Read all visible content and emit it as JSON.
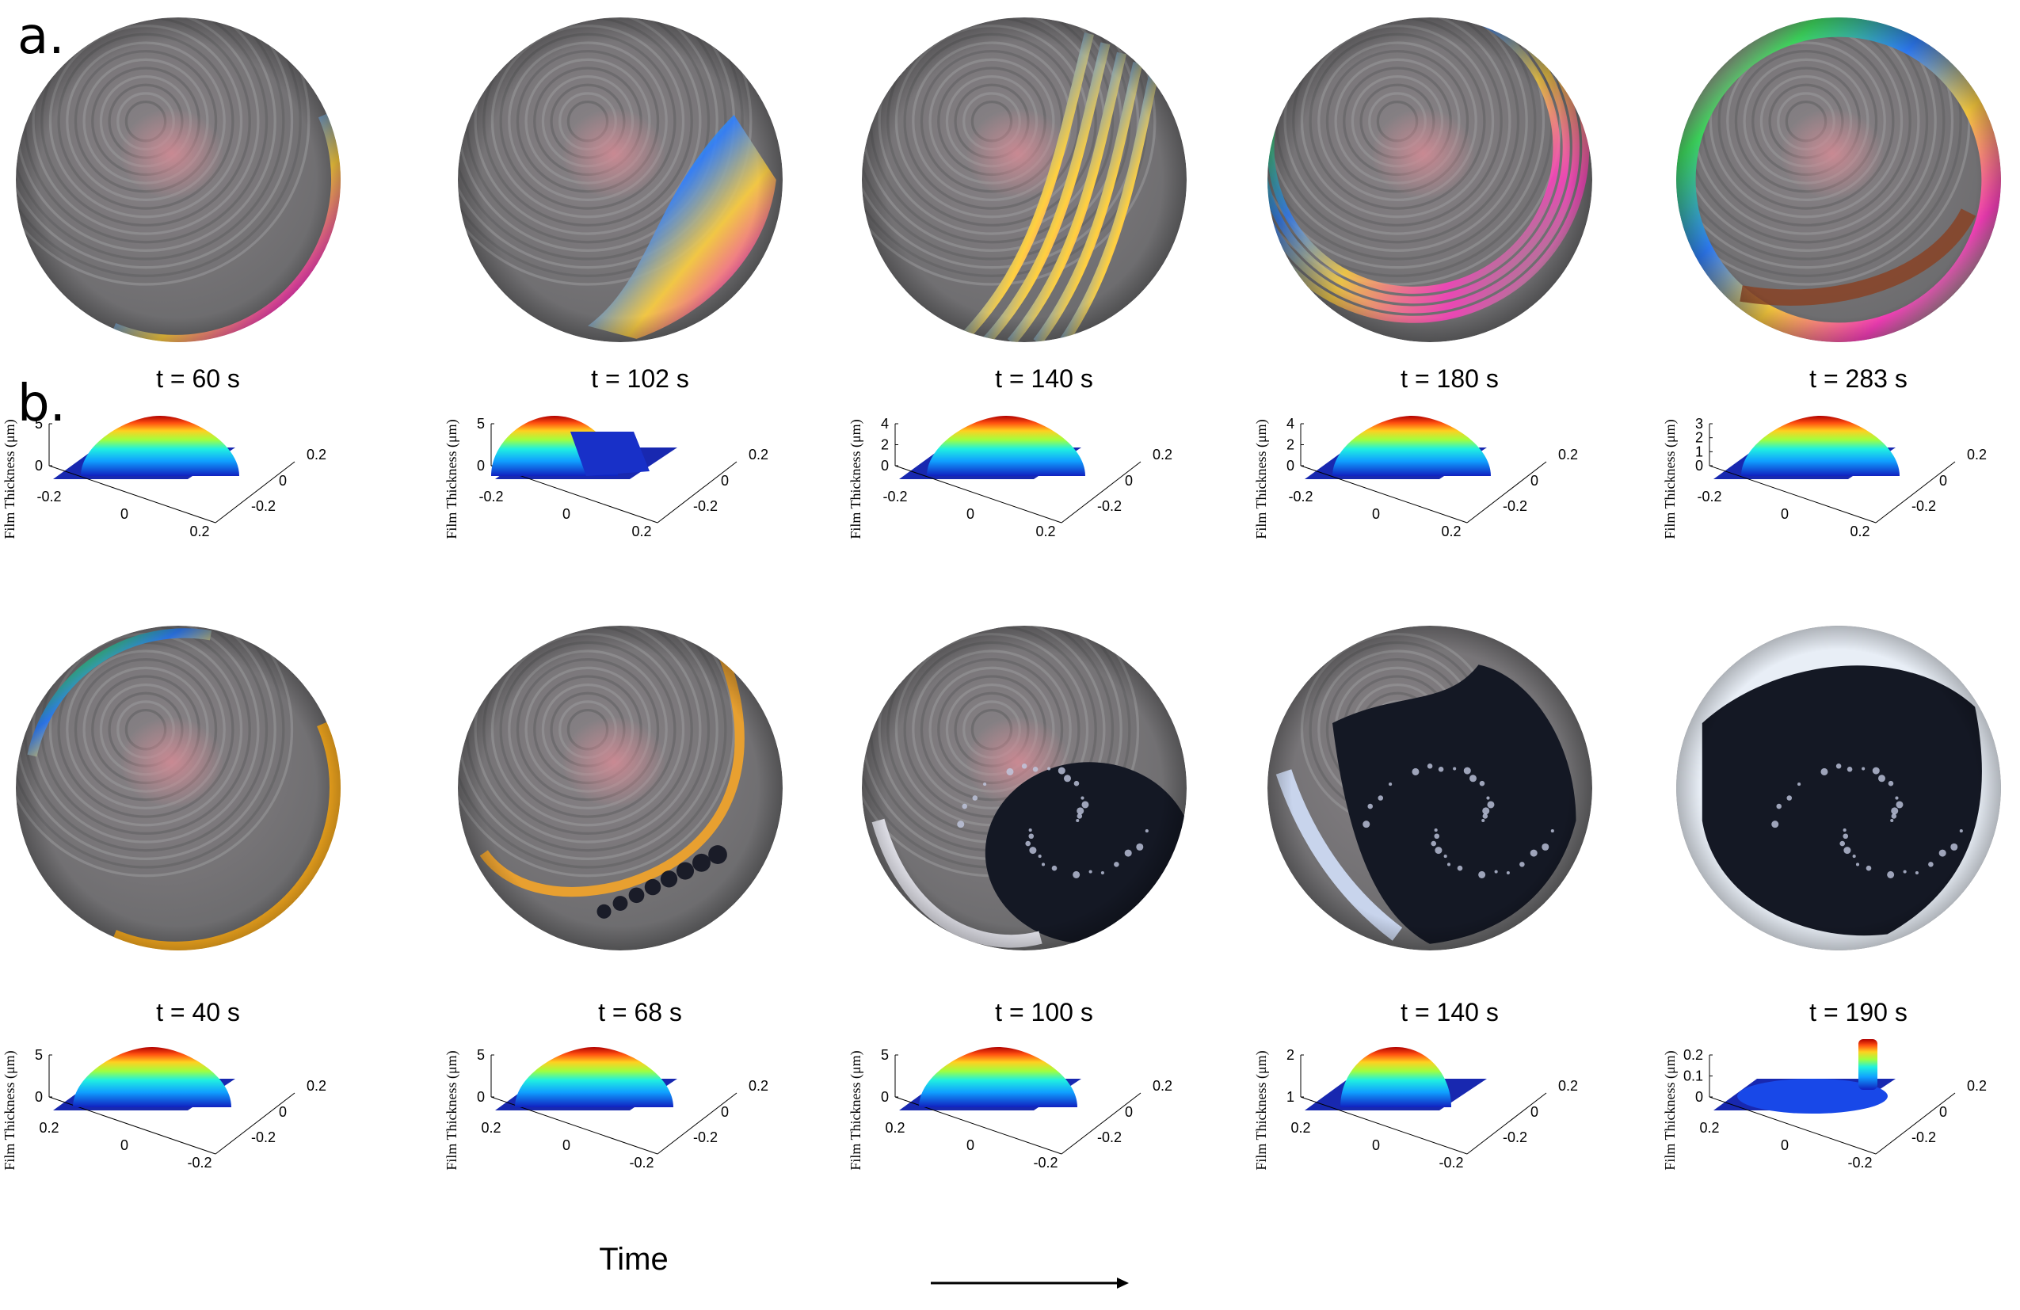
{
  "panels": [
    {
      "letter": "a.",
      "frames": [
        {
          "time": "t = 60 s",
          "zticks": [
            "0",
            "5"
          ],
          "xticks": [
            "-0.2",
            "0",
            "0.2"
          ],
          "yticks": [
            "0.2",
            "0",
            "-0.2"
          ]
        },
        {
          "time": "t = 102 s",
          "zticks": [
            "0",
            "5"
          ],
          "xticks": [
            "-0.2",
            "0",
            "0.2"
          ],
          "yticks": [
            "0.2",
            "0",
            "-0.2"
          ]
        },
        {
          "time": "t = 140 s",
          "zticks": [
            "0",
            "2",
            "4"
          ],
          "xticks": [
            "-0.2",
            "0",
            "0.2"
          ],
          "yticks": [
            "0.2",
            "0",
            "-0.2"
          ]
        },
        {
          "time": "t = 180 s",
          "zticks": [
            "0",
            "2",
            "4"
          ],
          "xticks": [
            "-0.2",
            "0",
            "0.2"
          ],
          "yticks": [
            "0.2",
            "0",
            "-0.2"
          ]
        },
        {
          "time": "t = 283 s",
          "zticks": [
            "0",
            "1",
            "2",
            "3"
          ],
          "xticks": [
            "-0.2",
            "0",
            "0.2"
          ],
          "yticks": [
            "0.2",
            "0",
            "-0.2"
          ]
        }
      ]
    },
    {
      "letter": "b.",
      "frames": [
        {
          "time": "t = 40 s",
          "zticks": [
            "0",
            "5"
          ],
          "xticks": [
            "0.2",
            "0",
            "-0.2"
          ],
          "yticks": [
            "0.2",
            "0",
            "-0.2"
          ]
        },
        {
          "time": "t = 68 s",
          "zticks": [
            "0",
            "5"
          ],
          "xticks": [
            "0.2",
            "0",
            "-0.2"
          ],
          "yticks": [
            "0.2",
            "0",
            "-0.2"
          ]
        },
        {
          "time": "t = 100 s",
          "zticks": [
            "0",
            "5"
          ],
          "xticks": [
            "0.2",
            "0",
            "-0.2"
          ],
          "yticks": [
            "0.2",
            "0",
            "-0.2"
          ]
        },
        {
          "time": "t = 140 s",
          "zticks": [
            "1",
            "2"
          ],
          "xticks": [
            "0.2",
            "0",
            "-0.2"
          ],
          "yticks": [
            "0.2",
            "0",
            "-0.2"
          ]
        },
        {
          "time": "t = 190 s",
          "zticks": [
            "0",
            "0.1",
            "0.2"
          ],
          "xticks": [
            "0.2",
            "0",
            "-0.2"
          ],
          "yticks": [
            "0.2",
            "0",
            "-0.2"
          ]
        }
      ]
    }
  ],
  "zlabel": "Film Thickness (μm)",
  "arrow_label": "Time"
}
